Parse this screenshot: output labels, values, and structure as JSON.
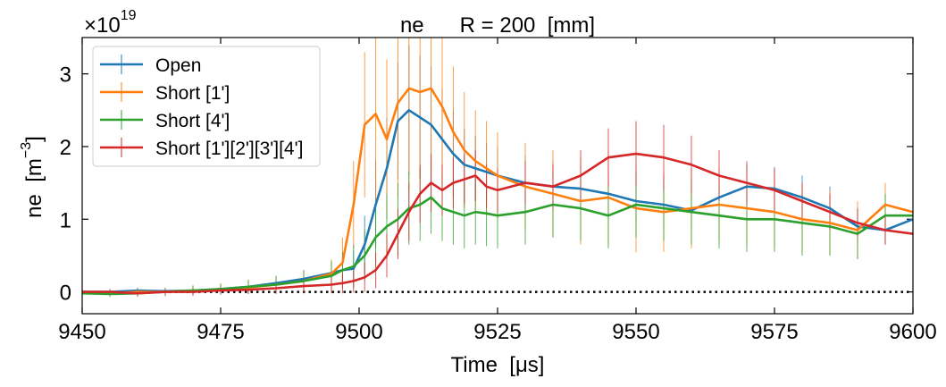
{
  "chart_data": {
    "type": "line",
    "title": "ne      R = 200  [mm]",
    "xlabel": "Time  [μs]",
    "ylabel": "ne  [m",
    "ylabel_exp": "−3",
    "ylabel_close": "]",
    "offset_base": "×10",
    "offset_exp": "19",
    "xlim": [
      9450,
      9600
    ],
    "ylim": [
      -0.3,
      3.5
    ],
    "xticks": [
      9450,
      9475,
      9500,
      9525,
      9550,
      9575,
      9600
    ],
    "xtick_labels": [
      "9450",
      "9475",
      "9500",
      "9525",
      "9550",
      "9575",
      "9600"
    ],
    "yticks": [
      0,
      1,
      2,
      3
    ],
    "ytick_labels": [
      "0",
      "1",
      "2",
      "3"
    ],
    "grid": false,
    "legend": "upper-left",
    "zero_line": {
      "y": 0,
      "style": "dotted",
      "color": "#000000"
    },
    "x": [
      9450,
      9455,
      9460,
      9465,
      9470,
      9475,
      9480,
      9485,
      9490,
      9495,
      9497,
      9499,
      9501,
      9503,
      9505,
      9507,
      9509,
      9511,
      9513,
      9515,
      9517,
      9519,
      9521,
      9523,
      9525,
      9530,
      9535,
      9540,
      9545,
      9550,
      9555,
      9560,
      9565,
      9570,
      9575,
      9580,
      9585,
      9590,
      9595,
      9600
    ],
    "series": [
      {
        "name": "Open",
        "color": "#1f77b4",
        "values": [
          0.0,
          0.0,
          0.02,
          0.01,
          0.02,
          0.04,
          0.07,
          0.12,
          0.18,
          0.26,
          0.3,
          0.32,
          0.65,
          1.2,
          1.7,
          2.35,
          2.5,
          2.4,
          2.3,
          2.1,
          1.9,
          1.75,
          1.7,
          1.65,
          1.6,
          1.5,
          1.45,
          1.42,
          1.35,
          1.25,
          1.2,
          1.12,
          1.3,
          1.45,
          1.42,
          1.3,
          1.15,
          0.9,
          0.85,
          1.0
        ],
        "errors": [
          0.03,
          0.03,
          0.04,
          0.04,
          0.05,
          0.06,
          0.08,
          0.1,
          0.12,
          0.15,
          0.2,
          0.25,
          0.4,
          0.6,
          0.7,
          0.8,
          0.9,
          0.85,
          0.8,
          0.7,
          0.6,
          0.5,
          0.45,
          0.4,
          0.4,
          0.38,
          0.36,
          0.35,
          0.35,
          0.34,
          0.33,
          0.32,
          0.3,
          0.3,
          0.3,
          0.3,
          0.3,
          0.25,
          0.2,
          0.15
        ]
      },
      {
        "name": "Short [1']",
        "color": "#ff7f0e",
        "values": [
          0.0,
          -0.02,
          0.0,
          0.0,
          0.02,
          0.03,
          0.06,
          0.1,
          0.15,
          0.25,
          0.4,
          1.2,
          2.3,
          2.45,
          2.1,
          2.6,
          2.8,
          2.75,
          2.8,
          2.55,
          2.2,
          1.95,
          1.8,
          1.7,
          1.6,
          1.45,
          1.35,
          1.25,
          1.3,
          1.15,
          1.1,
          1.15,
          1.2,
          1.15,
          1.1,
          1.0,
          0.95,
          0.85,
          1.2,
          1.1
        ],
        "errors": [
          0.04,
          0.04,
          0.05,
          0.05,
          0.06,
          0.07,
          0.09,
          0.11,
          0.14,
          0.2,
          0.35,
          0.6,
          1.0,
          1.2,
          1.1,
          1.3,
          1.4,
          1.2,
          1.1,
          1.0,
          0.9,
          0.8,
          0.7,
          0.65,
          0.6,
          0.6,
          0.6,
          0.6,
          0.65,
          0.6,
          0.55,
          0.55,
          0.5,
          0.5,
          0.5,
          0.45,
          0.45,
          0.4,
          0.3,
          0.25
        ]
      },
      {
        "name": "Short [4']",
        "color": "#2ca02c",
        "values": [
          -0.02,
          -0.03,
          -0.02,
          0.0,
          0.02,
          0.04,
          0.07,
          0.1,
          0.15,
          0.22,
          0.3,
          0.35,
          0.5,
          0.75,
          0.9,
          1.0,
          1.15,
          1.2,
          1.3,
          1.15,
          1.1,
          1.05,
          1.1,
          1.08,
          1.05,
          1.1,
          1.2,
          1.15,
          1.05,
          1.2,
          1.15,
          1.1,
          1.05,
          1.0,
          1.0,
          0.95,
          0.9,
          0.8,
          1.05,
          1.05
        ],
        "errors": [
          0.04,
          0.04,
          0.05,
          0.06,
          0.07,
          0.08,
          0.1,
          0.12,
          0.15,
          0.2,
          0.25,
          0.3,
          0.35,
          0.4,
          0.45,
          0.5,
          0.5,
          0.5,
          0.5,
          0.45,
          0.45,
          0.45,
          0.45,
          0.45,
          0.45,
          0.45,
          0.45,
          0.45,
          0.45,
          0.45,
          0.45,
          0.45,
          0.45,
          0.45,
          0.45,
          0.45,
          0.4,
          0.35,
          0.3,
          0.25
        ]
      },
      {
        "name": "Short [1'][2'][3'][4']",
        "color": "#d62728",
        "values": [
          0.0,
          0.0,
          -0.02,
          0.0,
          0.0,
          0.02,
          0.03,
          0.05,
          0.08,
          0.1,
          0.12,
          0.15,
          0.2,
          0.3,
          0.5,
          0.8,
          1.1,
          1.35,
          1.5,
          1.4,
          1.5,
          1.55,
          1.6,
          1.45,
          1.4,
          1.5,
          1.45,
          1.6,
          1.85,
          1.9,
          1.85,
          1.75,
          1.6,
          1.5,
          1.4,
          1.25,
          1.1,
          0.95,
          0.85,
          0.8
        ],
        "errors": [
          0.03,
          0.04,
          0.04,
          0.04,
          0.05,
          0.05,
          0.06,
          0.08,
          0.1,
          0.12,
          0.14,
          0.16,
          0.2,
          0.25,
          0.3,
          0.35,
          0.4,
          0.4,
          0.4,
          0.35,
          0.35,
          0.35,
          0.35,
          0.3,
          0.3,
          0.3,
          0.3,
          0.35,
          0.4,
          0.45,
          0.45,
          0.4,
          0.35,
          0.3,
          0.3,
          0.25,
          0.25,
          0.2,
          0.2,
          0.2
        ]
      }
    ]
  }
}
